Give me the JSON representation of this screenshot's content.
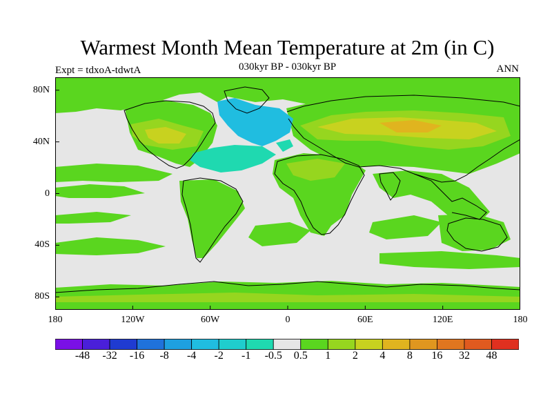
{
  "title": "Warmest Month Mean Temperature at 2m (in C)",
  "subtitle": "030kyr BP - 030kyr BP",
  "left_label": "Expt = tdxoA-tdwtA",
  "right_label": "ANN",
  "axes": {
    "lat_ticks": [
      "80N",
      "40N",
      "0",
      "40S",
      "80S"
    ],
    "lat_values": [
      80,
      40,
      0,
      -40,
      -80
    ],
    "lon_ticks": [
      "180",
      "120W",
      "60W",
      "0",
      "60E",
      "120E",
      "180"
    ],
    "lon_values": [
      -180,
      -120,
      -60,
      0,
      60,
      120,
      180
    ],
    "lon_range": [
      -180,
      180
    ],
    "lat_range": [
      -90,
      90
    ]
  },
  "colorbar": {
    "labels": [
      "-48",
      "-32",
      "-16",
      "-8",
      "-4",
      "-2",
      "-1",
      "-0.5",
      "0.5",
      "1",
      "2",
      "4",
      "8",
      "16",
      "32",
      "48"
    ],
    "colors": [
      "#7a10e6",
      "#4a1fd9",
      "#1f3bd1",
      "#1f72db",
      "#1ea0e0",
      "#20bde0",
      "#1fcdcd",
      "#1fd9b0",
      "#e6e6e6",
      "#5ad61f",
      "#96d61f",
      "#c8d21f",
      "#e0b41f",
      "#e0961f",
      "#e0761f",
      "#e05a1f",
      "#e0301f"
    ]
  },
  "palette": {
    "neutral": "#e6e6e6",
    "green": "#5ad61f",
    "lime": "#96d61f",
    "yellow": "#c8d21f",
    "gold": "#e0b41f",
    "cyan": "#20bde0",
    "teal": "#1fd9b0",
    "coast": "#000000"
  }
}
